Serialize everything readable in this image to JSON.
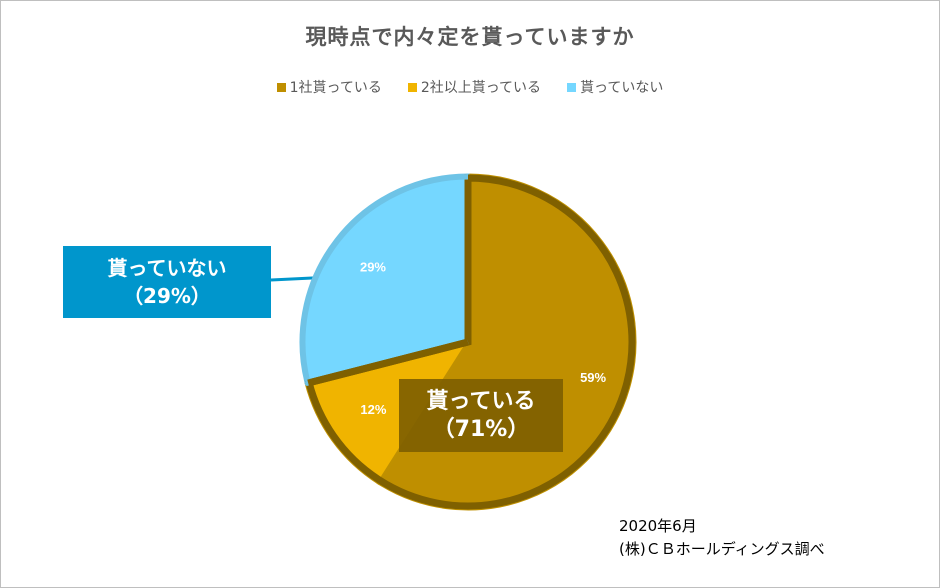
{
  "chart_data": {
    "type": "pie",
    "title": "現時点で内々定を貰っていますか",
    "categories": [
      "1社貰っている",
      "2社以上貰っている",
      "貰っていない"
    ],
    "values": [
      59,
      12,
      29
    ],
    "data_labels": [
      "59%",
      "12%",
      "29%"
    ],
    "colors": [
      "#BF8F00",
      "#F0B400",
      "#75D7FF"
    ],
    "legend_position": "top",
    "callouts": {
      "not_received": {
        "line1": "貰っていない",
        "line2": "（29%）",
        "color": "#0096CC"
      },
      "received": {
        "line1": "貰っている",
        "line2": "（71%）",
        "color": "#7F6000"
      }
    },
    "note": {
      "line1": "2020年6月",
      "line2": "(株)ＣＢホールディングス調べ"
    }
  }
}
